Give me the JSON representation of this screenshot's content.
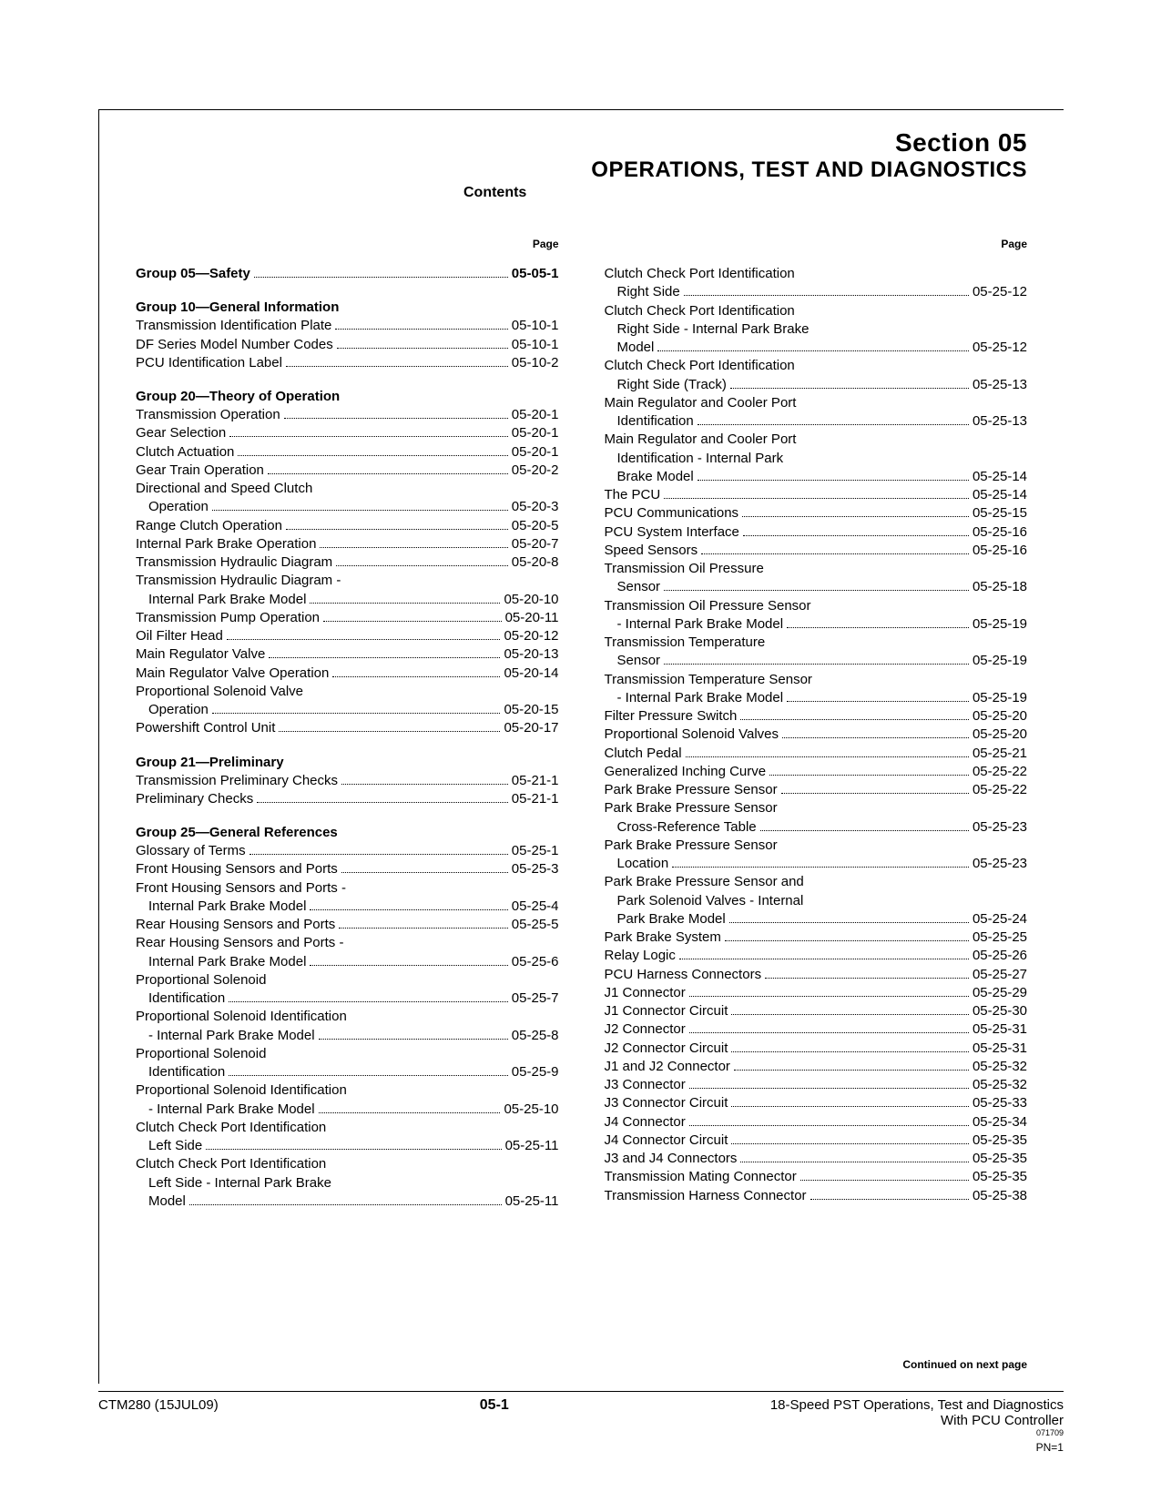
{
  "header": {
    "section": "Section 05",
    "title": "OPERATIONS, TEST AND DIAGNOSTICS",
    "contents": "Contents"
  },
  "pageLabel": "Page",
  "continued": "Continued on next page",
  "footer": {
    "left": "CTM280 (15JUL09)",
    "center": "05-1",
    "rightLine1": "18-Speed PST Operations, Test and Diagnostics",
    "rightLine2": "With PCU Controller",
    "rightSmall": "071709",
    "pn": "PN=1"
  },
  "col1": [
    {
      "type": "groupPage",
      "label": "Group 05—Safety",
      "page": "05-05-1"
    },
    {
      "type": "group",
      "label": "Group 10—General Information"
    },
    {
      "type": "item",
      "indent": 0,
      "label": "Transmission Identification Plate",
      "page": "05-10-1"
    },
    {
      "type": "item",
      "indent": 0,
      "label": "DF Series Model Number Codes",
      "page": "05-10-1"
    },
    {
      "type": "item",
      "indent": 0,
      "label": "PCU Identification Label",
      "page": "05-10-2"
    },
    {
      "type": "group",
      "label": "Group 20—Theory of Operation"
    },
    {
      "type": "item",
      "indent": 0,
      "label": "Transmission Operation",
      "page": "05-20-1"
    },
    {
      "type": "item",
      "indent": 0,
      "label": "Gear Selection",
      "page": "05-20-1"
    },
    {
      "type": "item",
      "indent": 0,
      "label": "Clutch Actuation",
      "page": "05-20-1"
    },
    {
      "type": "item",
      "indent": 0,
      "label": "Gear Train Operation",
      "page": "05-20-2"
    },
    {
      "type": "wrap",
      "indent": 0,
      "label": "Directional and Speed Clutch"
    },
    {
      "type": "item",
      "indent": 1,
      "label": "Operation",
      "page": "05-20-3"
    },
    {
      "type": "item",
      "indent": 0,
      "label": "Range Clutch Operation",
      "page": "05-20-5"
    },
    {
      "type": "item",
      "indent": 0,
      "label": "Internal Park Brake Operation",
      "page": "05-20-7"
    },
    {
      "type": "item",
      "indent": 0,
      "label": "Transmission Hydraulic Diagram",
      "page": "05-20-8"
    },
    {
      "type": "wrap",
      "indent": 0,
      "label": "Transmission Hydraulic Diagram -"
    },
    {
      "type": "item",
      "indent": 1,
      "label": "Internal Park Brake Model",
      "page": "05-20-10"
    },
    {
      "type": "item",
      "indent": 0,
      "label": "Transmission Pump Operation",
      "page": "05-20-11"
    },
    {
      "type": "item",
      "indent": 0,
      "label": "Oil Filter Head",
      "page": "05-20-12"
    },
    {
      "type": "item",
      "indent": 0,
      "label": "Main Regulator Valve",
      "page": "05-20-13"
    },
    {
      "type": "item",
      "indent": 0,
      "label": "Main Regulator Valve Operation",
      "page": "05-20-14"
    },
    {
      "type": "wrap",
      "indent": 0,
      "label": "Proportional Solenoid Valve"
    },
    {
      "type": "item",
      "indent": 1,
      "label": "Operation",
      "page": "05-20-15"
    },
    {
      "type": "item",
      "indent": 0,
      "label": "Powershift Control Unit",
      "page": "05-20-17"
    },
    {
      "type": "group",
      "label": "Group 21—Preliminary"
    },
    {
      "type": "item",
      "indent": 0,
      "label": "Transmission Preliminary Checks",
      "page": "05-21-1"
    },
    {
      "type": "item",
      "indent": 0,
      "label": "Preliminary Checks",
      "page": "05-21-1"
    },
    {
      "type": "group",
      "label": "Group 25—General References"
    },
    {
      "type": "item",
      "indent": 0,
      "label": "Glossary of Terms",
      "page": "05-25-1"
    },
    {
      "type": "item",
      "indent": 0,
      "label": "Front Housing Sensors and Ports",
      "page": "05-25-3"
    },
    {
      "type": "wrap",
      "indent": 0,
      "label": "Front Housing Sensors and Ports -"
    },
    {
      "type": "item",
      "indent": 1,
      "label": "Internal Park Brake Model",
      "page": "05-25-4"
    },
    {
      "type": "item",
      "indent": 0,
      "label": "Rear Housing Sensors and Ports",
      "page": "05-25-5"
    },
    {
      "type": "wrap",
      "indent": 0,
      "label": "Rear Housing Sensors and Ports -"
    },
    {
      "type": "item",
      "indent": 1,
      "label": "Internal Park Brake Model",
      "page": "05-25-6"
    },
    {
      "type": "wrap",
      "indent": 0,
      "label": "Proportional Solenoid"
    },
    {
      "type": "item",
      "indent": 1,
      "label": "Identification",
      "page": "05-25-7"
    },
    {
      "type": "wrap",
      "indent": 0,
      "label": "Proportional Solenoid Identification"
    },
    {
      "type": "item",
      "indent": 1,
      "label": "- Internal Park Brake Model",
      "page": "05-25-8"
    },
    {
      "type": "wrap",
      "indent": 0,
      "label": "Proportional Solenoid"
    },
    {
      "type": "item",
      "indent": 1,
      "label": "Identification",
      "page": "05-25-9"
    },
    {
      "type": "wrap",
      "indent": 0,
      "label": "Proportional Solenoid Identification"
    },
    {
      "type": "item",
      "indent": 1,
      "label": "- Internal Park Brake Model",
      "page": "05-25-10"
    },
    {
      "type": "wrap",
      "indent": 0,
      "label": "Clutch Check Port Identification"
    },
    {
      "type": "item",
      "indent": 1,
      "label": "Left Side",
      "page": "05-25-11"
    },
    {
      "type": "wrap",
      "indent": 0,
      "label": "Clutch Check Port Identification"
    },
    {
      "type": "wrap",
      "indent": 1,
      "label": "Left Side - Internal Park Brake"
    },
    {
      "type": "item",
      "indent": 1,
      "label": "Model",
      "page": "05-25-11"
    }
  ],
  "col2": [
    {
      "type": "wrap",
      "indent": 0,
      "label": "Clutch Check Port Identification"
    },
    {
      "type": "item",
      "indent": 1,
      "label": "Right Side",
      "page": "05-25-12"
    },
    {
      "type": "wrap",
      "indent": 0,
      "label": "Clutch Check Port Identification"
    },
    {
      "type": "wrap",
      "indent": 1,
      "label": "Right Side - Internal Park Brake"
    },
    {
      "type": "item",
      "indent": 1,
      "label": "Model",
      "page": "05-25-12"
    },
    {
      "type": "wrap",
      "indent": 0,
      "label": "Clutch Check Port Identification"
    },
    {
      "type": "item",
      "indent": 1,
      "label": "Right Side (Track)",
      "page": "05-25-13"
    },
    {
      "type": "wrap",
      "indent": 0,
      "label": "Main Regulator and Cooler Port"
    },
    {
      "type": "item",
      "indent": 1,
      "label": "Identification",
      "page": "05-25-13"
    },
    {
      "type": "wrap",
      "indent": 0,
      "label": "Main Regulator and Cooler Port"
    },
    {
      "type": "wrap",
      "indent": 1,
      "label": "Identification - Internal Park"
    },
    {
      "type": "item",
      "indent": 1,
      "label": "Brake Model",
      "page": "05-25-14"
    },
    {
      "type": "item",
      "indent": 0,
      "label": "The PCU",
      "page": "05-25-14"
    },
    {
      "type": "item",
      "indent": 0,
      "label": "PCU Communications",
      "page": "05-25-15"
    },
    {
      "type": "item",
      "indent": 0,
      "label": "PCU System Interface",
      "page": "05-25-16"
    },
    {
      "type": "item",
      "indent": 0,
      "label": "Speed Sensors",
      "page": "05-25-16"
    },
    {
      "type": "wrap",
      "indent": 0,
      "label": "Transmission Oil Pressure"
    },
    {
      "type": "item",
      "indent": 1,
      "label": "Sensor",
      "page": "05-25-18"
    },
    {
      "type": "wrap",
      "indent": 0,
      "label": "Transmission Oil Pressure Sensor"
    },
    {
      "type": "item",
      "indent": 1,
      "label": "- Internal Park Brake Model",
      "page": "05-25-19"
    },
    {
      "type": "wrap",
      "indent": 0,
      "label": "Transmission Temperature"
    },
    {
      "type": "item",
      "indent": 1,
      "label": "Sensor",
      "page": "05-25-19"
    },
    {
      "type": "wrap",
      "indent": 0,
      "label": "Transmission Temperature Sensor"
    },
    {
      "type": "item",
      "indent": 1,
      "label": "- Internal Park Brake Model",
      "page": "05-25-19"
    },
    {
      "type": "item",
      "indent": 0,
      "label": "Filter Pressure Switch",
      "page": "05-25-20"
    },
    {
      "type": "item",
      "indent": 0,
      "label": "Proportional Solenoid Valves",
      "page": "05-25-20"
    },
    {
      "type": "item",
      "indent": 0,
      "label": "Clutch Pedal",
      "page": "05-25-21"
    },
    {
      "type": "item",
      "indent": 0,
      "label": "Generalized Inching Curve",
      "page": "05-25-22"
    },
    {
      "type": "item",
      "indent": 0,
      "label": "Park Brake Pressure Sensor",
      "page": "05-25-22"
    },
    {
      "type": "wrap",
      "indent": 0,
      "label": "Park Brake Pressure Sensor"
    },
    {
      "type": "item",
      "indent": 1,
      "label": "Cross-Reference Table",
      "page": "05-25-23"
    },
    {
      "type": "wrap",
      "indent": 0,
      "label": "Park Brake Pressure Sensor"
    },
    {
      "type": "item",
      "indent": 1,
      "label": "Location",
      "page": "05-25-23"
    },
    {
      "type": "wrap",
      "indent": 0,
      "label": "Park Brake Pressure Sensor and"
    },
    {
      "type": "wrap",
      "indent": 1,
      "label": "Park Solenoid Valves - Internal"
    },
    {
      "type": "item",
      "indent": 1,
      "label": "Park Brake Model",
      "page": "05-25-24"
    },
    {
      "type": "item",
      "indent": 0,
      "label": "Park Brake System",
      "page": "05-25-25"
    },
    {
      "type": "item",
      "indent": 0,
      "label": "Relay Logic",
      "page": "05-25-26"
    },
    {
      "type": "item",
      "indent": 0,
      "label": "PCU Harness Connectors",
      "page": "05-25-27"
    },
    {
      "type": "item",
      "indent": 0,
      "label": "J1 Connector",
      "page": "05-25-29"
    },
    {
      "type": "item",
      "indent": 0,
      "label": "J1 Connector Circuit",
      "page": "05-25-30"
    },
    {
      "type": "item",
      "indent": 0,
      "label": "J2 Connector",
      "page": "05-25-31"
    },
    {
      "type": "item",
      "indent": 0,
      "label": "J2 Connector Circuit",
      "page": "05-25-31"
    },
    {
      "type": "item",
      "indent": 0,
      "label": "J1 and J2 Connector",
      "page": "05-25-32"
    },
    {
      "type": "item",
      "indent": 0,
      "label": "J3 Connector",
      "page": "05-25-32"
    },
    {
      "type": "item",
      "indent": 0,
      "label": "J3 Connector Circuit",
      "page": "05-25-33"
    },
    {
      "type": "item",
      "indent": 0,
      "label": "J4 Connector",
      "page": "05-25-34"
    },
    {
      "type": "item",
      "indent": 0,
      "label": "J4 Connector Circuit",
      "page": "05-25-35"
    },
    {
      "type": "item",
      "indent": 0,
      "label": "J3 and J4 Connectors",
      "page": "05-25-35"
    },
    {
      "type": "item",
      "indent": 0,
      "label": "Transmission Mating Connector",
      "page": "05-25-35"
    },
    {
      "type": "item",
      "indent": 0,
      "label": "Transmission Harness Connector",
      "page": "05-25-38"
    }
  ]
}
